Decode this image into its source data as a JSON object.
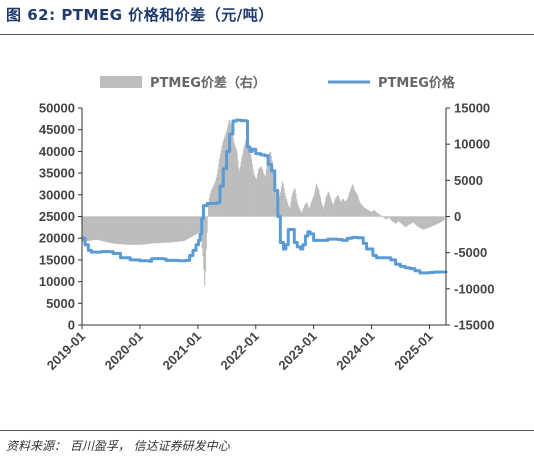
{
  "figure": {
    "title": "图 62:  PTMEG 价格和价差（元/吨）",
    "source": "资料来源：  百川盈孚，  信达证券研发中心"
  },
  "chart_data": {
    "type": "bar+line",
    "title": "",
    "xlabel": "",
    "ylabel_left": "",
    "ylabel_right": "",
    "legend_position": "top",
    "grid": false,
    "x_range": [
      "2019-01-01",
      "2025-04-15"
    ],
    "x_ticks": [
      "2019-01",
      "2020-01",
      "2021-01",
      "2022-01",
      "2023-01",
      "2024-01",
      "2025-01"
    ],
    "y_left": {
      "min": 0,
      "max": 50000,
      "ticks": [
        0,
        5000,
        10000,
        15000,
        20000,
        25000,
        30000,
        35000,
        40000,
        45000,
        50000
      ]
    },
    "y_right": {
      "min": -15000,
      "max": 15000,
      "ticks": [
        -15000,
        -10000,
        -5000,
        0,
        5000,
        10000,
        15000
      ]
    },
    "series": [
      {
        "name": "PTMEG价差（右）",
        "type": "bar",
        "axis": "right",
        "color": "#bdbdbd",
        "points": [
          [
            "2019-01-01",
            -3500
          ],
          [
            "2019-04-01",
            -3200
          ],
          [
            "2019-07-01",
            -3700
          ],
          [
            "2019-10-01",
            -3900
          ],
          [
            "2020-01-01",
            -3900
          ],
          [
            "2020-04-01",
            -3700
          ],
          [
            "2020-07-01",
            -3600
          ],
          [
            "2020-10-01",
            -3400
          ],
          [
            "2020-12-15",
            -2500
          ],
          [
            "2021-01-15",
            -2000
          ],
          [
            "2021-02-01",
            -6000
          ],
          [
            "2021-02-10",
            -10000
          ],
          [
            "2021-02-20",
            -4000
          ],
          [
            "2021-03-01",
            0
          ],
          [
            "2021-03-10",
            2500
          ],
          [
            "2021-03-20",
            3500
          ],
          [
            "2021-04-01",
            4000
          ],
          [
            "2021-04-20",
            5000
          ],
          [
            "2021-05-01",
            6000
          ],
          [
            "2021-05-15",
            8000
          ],
          [
            "2021-06-01",
            10000
          ],
          [
            "2021-06-15",
            11000
          ],
          [
            "2021-07-01",
            12000
          ],
          [
            "2021-07-15",
            13500
          ],
          [
            "2021-08-01",
            12000
          ],
          [
            "2021-08-15",
            10000
          ],
          [
            "2021-09-01",
            9000
          ],
          [
            "2021-09-15",
            6000
          ],
          [
            "2021-10-01",
            8000
          ],
          [
            "2021-10-15",
            9500
          ],
          [
            "2021-11-01",
            11000
          ],
          [
            "2021-11-15",
            10000
          ],
          [
            "2021-12-01",
            8000
          ],
          [
            "2021-12-15",
            6000
          ],
          [
            "2022-01-01",
            5000
          ],
          [
            "2022-01-15",
            6500
          ],
          [
            "2022-02-01",
            7000
          ],
          [
            "2022-02-15",
            6000
          ],
          [
            "2022-03-01",
            5500
          ],
          [
            "2022-03-15",
            8500
          ],
          [
            "2022-04-01",
            9000
          ],
          [
            "2022-04-15",
            7000
          ],
          [
            "2022-05-01",
            4000
          ],
          [
            "2022-05-15",
            2000
          ],
          [
            "2022-06-01",
            3000
          ],
          [
            "2022-06-15",
            5000
          ],
          [
            "2022-07-01",
            3000
          ],
          [
            "2022-07-15",
            2000
          ],
          [
            "2022-08-01",
            1000
          ],
          [
            "2022-08-15",
            3000
          ],
          [
            "2022-09-01",
            4000
          ],
          [
            "2022-09-15",
            2000
          ],
          [
            "2022-10-01",
            1000
          ],
          [
            "2022-10-15",
            500
          ],
          [
            "2022-11-01",
            1500
          ],
          [
            "2022-11-15",
            2000
          ],
          [
            "2022-12-01",
            1000
          ],
          [
            "2022-12-15",
            2000
          ],
          [
            "2023-01-01",
            3000
          ],
          [
            "2023-01-15",
            4500
          ],
          [
            "2023-02-01",
            3500
          ],
          [
            "2023-02-15",
            2000
          ],
          [
            "2023-03-01",
            1000
          ],
          [
            "2023-03-15",
            2500
          ],
          [
            "2023-04-01",
            3500
          ],
          [
            "2023-04-15",
            2500
          ],
          [
            "2023-05-01",
            1500
          ],
          [
            "2023-05-15",
            2500
          ],
          [
            "2023-06-01",
            3000
          ],
          [
            "2023-06-15",
            2000
          ],
          [
            "2023-07-01",
            2500
          ],
          [
            "2023-07-15",
            2000
          ],
          [
            "2023-08-01",
            2500
          ],
          [
            "2023-08-15",
            3500
          ],
          [
            "2023-09-01",
            4500
          ],
          [
            "2023-09-15",
            3500
          ],
          [
            "2023-10-01",
            3000
          ],
          [
            "2023-10-15",
            2000
          ],
          [
            "2023-11-01",
            1500
          ],
          [
            "2023-11-15",
            1200
          ],
          [
            "2023-12-01",
            1000
          ],
          [
            "2023-12-15",
            800
          ],
          [
            "2024-01-01",
            600
          ],
          [
            "2024-01-15",
            900
          ],
          [
            "2024-02-01",
            500
          ],
          [
            "2024-02-15",
            300
          ],
          [
            "2024-03-01",
            100
          ],
          [
            "2024-03-15",
            -200
          ],
          [
            "2024-04-01",
            -400
          ],
          [
            "2024-04-15",
            -100
          ],
          [
            "2024-05-01",
            -500
          ],
          [
            "2024-05-15",
            -800
          ],
          [
            "2024-06-01",
            -1000
          ],
          [
            "2024-06-15",
            -600
          ],
          [
            "2024-07-01",
            -900
          ],
          [
            "2024-07-15",
            -1200
          ],
          [
            "2024-08-01",
            -1500
          ],
          [
            "2024-08-15",
            -1200
          ],
          [
            "2024-09-01",
            -1000
          ],
          [
            "2024-09-15",
            -800
          ],
          [
            "2024-10-01",
            -1100
          ],
          [
            "2024-10-15",
            -1400
          ],
          [
            "2024-11-01",
            -1600
          ],
          [
            "2024-11-15",
            -1800
          ],
          [
            "2024-12-01",
            -1700
          ],
          [
            "2024-12-15",
            -1600
          ],
          [
            "2025-01-01",
            -1500
          ],
          [
            "2025-01-15",
            -1300
          ],
          [
            "2025-02-01",
            -1200
          ],
          [
            "2025-02-15",
            -1000
          ],
          [
            "2025-03-01",
            -900
          ],
          [
            "2025-03-15",
            -700
          ],
          [
            "2025-04-01",
            -500
          ]
        ]
      },
      {
        "name": "PTMEG价格",
        "type": "line",
        "axis": "left",
        "color": "#5b9bd5",
        "step": true,
        "points": [
          [
            "2019-01-01",
            20000
          ],
          [
            "2019-01-20",
            18500
          ],
          [
            "2019-02-10",
            17200
          ],
          [
            "2019-03-01",
            16800
          ],
          [
            "2019-05-01",
            16900
          ],
          [
            "2019-07-15",
            16500
          ],
          [
            "2019-09-01",
            15500
          ],
          [
            "2019-11-01",
            15000
          ],
          [
            "2020-01-01",
            14800
          ],
          [
            "2020-03-01",
            14700
          ],
          [
            "2020-03-15",
            15300
          ],
          [
            "2020-06-01",
            15200
          ],
          [
            "2020-06-15",
            14900
          ],
          [
            "2020-09-01",
            14800
          ],
          [
            "2020-10-15",
            14900
          ],
          [
            "2020-11-10",
            16000
          ],
          [
            "2020-12-01",
            17200
          ],
          [
            "2020-12-20",
            18500
          ],
          [
            "2021-01-05",
            19500
          ],
          [
            "2021-01-15",
            21000
          ],
          [
            "2021-01-25",
            24500
          ],
          [
            "2021-02-05",
            27500
          ],
          [
            "2021-03-01",
            28000
          ],
          [
            "2021-05-01",
            28200
          ],
          [
            "2021-05-20",
            32000
          ],
          [
            "2021-06-10",
            36000
          ],
          [
            "2021-07-01",
            40000
          ],
          [
            "2021-07-20",
            44000
          ],
          [
            "2021-08-10",
            47000
          ],
          [
            "2021-09-01",
            47200
          ],
          [
            "2021-10-01",
            47100
          ],
          [
            "2021-11-01",
            47000
          ],
          [
            "2021-11-10",
            41000
          ],
          [
            "2021-11-25",
            40000
          ],
          [
            "2021-12-10",
            40500
          ],
          [
            "2022-01-01",
            39500
          ],
          [
            "2022-02-01",
            39200
          ],
          [
            "2022-03-01",
            39000
          ],
          [
            "2022-03-20",
            37000
          ],
          [
            "2022-04-10",
            35500
          ],
          [
            "2022-05-01",
            31000
          ],
          [
            "2022-05-20",
            25000
          ],
          [
            "2022-06-05",
            19000
          ],
          [
            "2022-06-25",
            17500
          ],
          [
            "2022-07-10",
            18500
          ],
          [
            "2022-07-25",
            22000
          ],
          [
            "2022-08-10",
            22000
          ],
          [
            "2022-09-01",
            19000
          ],
          [
            "2022-09-20",
            18000
          ],
          [
            "2022-10-10",
            17500
          ],
          [
            "2022-10-25",
            18500
          ],
          [
            "2022-11-10",
            20500
          ],
          [
            "2022-11-25",
            21500
          ],
          [
            "2022-12-10",
            21000
          ],
          [
            "2023-01-01",
            19500
          ],
          [
            "2023-02-01",
            19500
          ],
          [
            "2023-04-01",
            19800
          ],
          [
            "2023-06-01",
            19700
          ],
          [
            "2023-07-01",
            19500
          ],
          [
            "2023-08-01",
            20000
          ],
          [
            "2023-09-01",
            20200
          ],
          [
            "2023-10-01",
            20100
          ],
          [
            "2023-11-10",
            18800
          ],
          [
            "2023-12-01",
            17500
          ],
          [
            "2024-01-10",
            16000
          ],
          [
            "2024-02-01",
            15500
          ],
          [
            "2024-04-01",
            15500
          ],
          [
            "2024-05-01",
            15000
          ],
          [
            "2024-06-01",
            14000
          ],
          [
            "2024-07-01",
            13500
          ],
          [
            "2024-08-01",
            13200
          ],
          [
            "2024-09-01",
            13000
          ],
          [
            "2024-10-01",
            12500
          ],
          [
            "2024-11-01",
            12000
          ],
          [
            "2024-12-01",
            12000
          ],
          [
            "2025-01-01",
            12100
          ],
          [
            "2025-02-01",
            12200
          ],
          [
            "2025-04-01",
            12200
          ],
          [
            "2025-04-15",
            12000
          ]
        ]
      }
    ],
    "legend": [
      {
        "label": "PTMEG价差（右）",
        "swatch": "bar",
        "color": "#bdbdbd"
      },
      {
        "label": "PTMEG价格",
        "swatch": "line",
        "color": "#5b9bd5"
      }
    ]
  }
}
